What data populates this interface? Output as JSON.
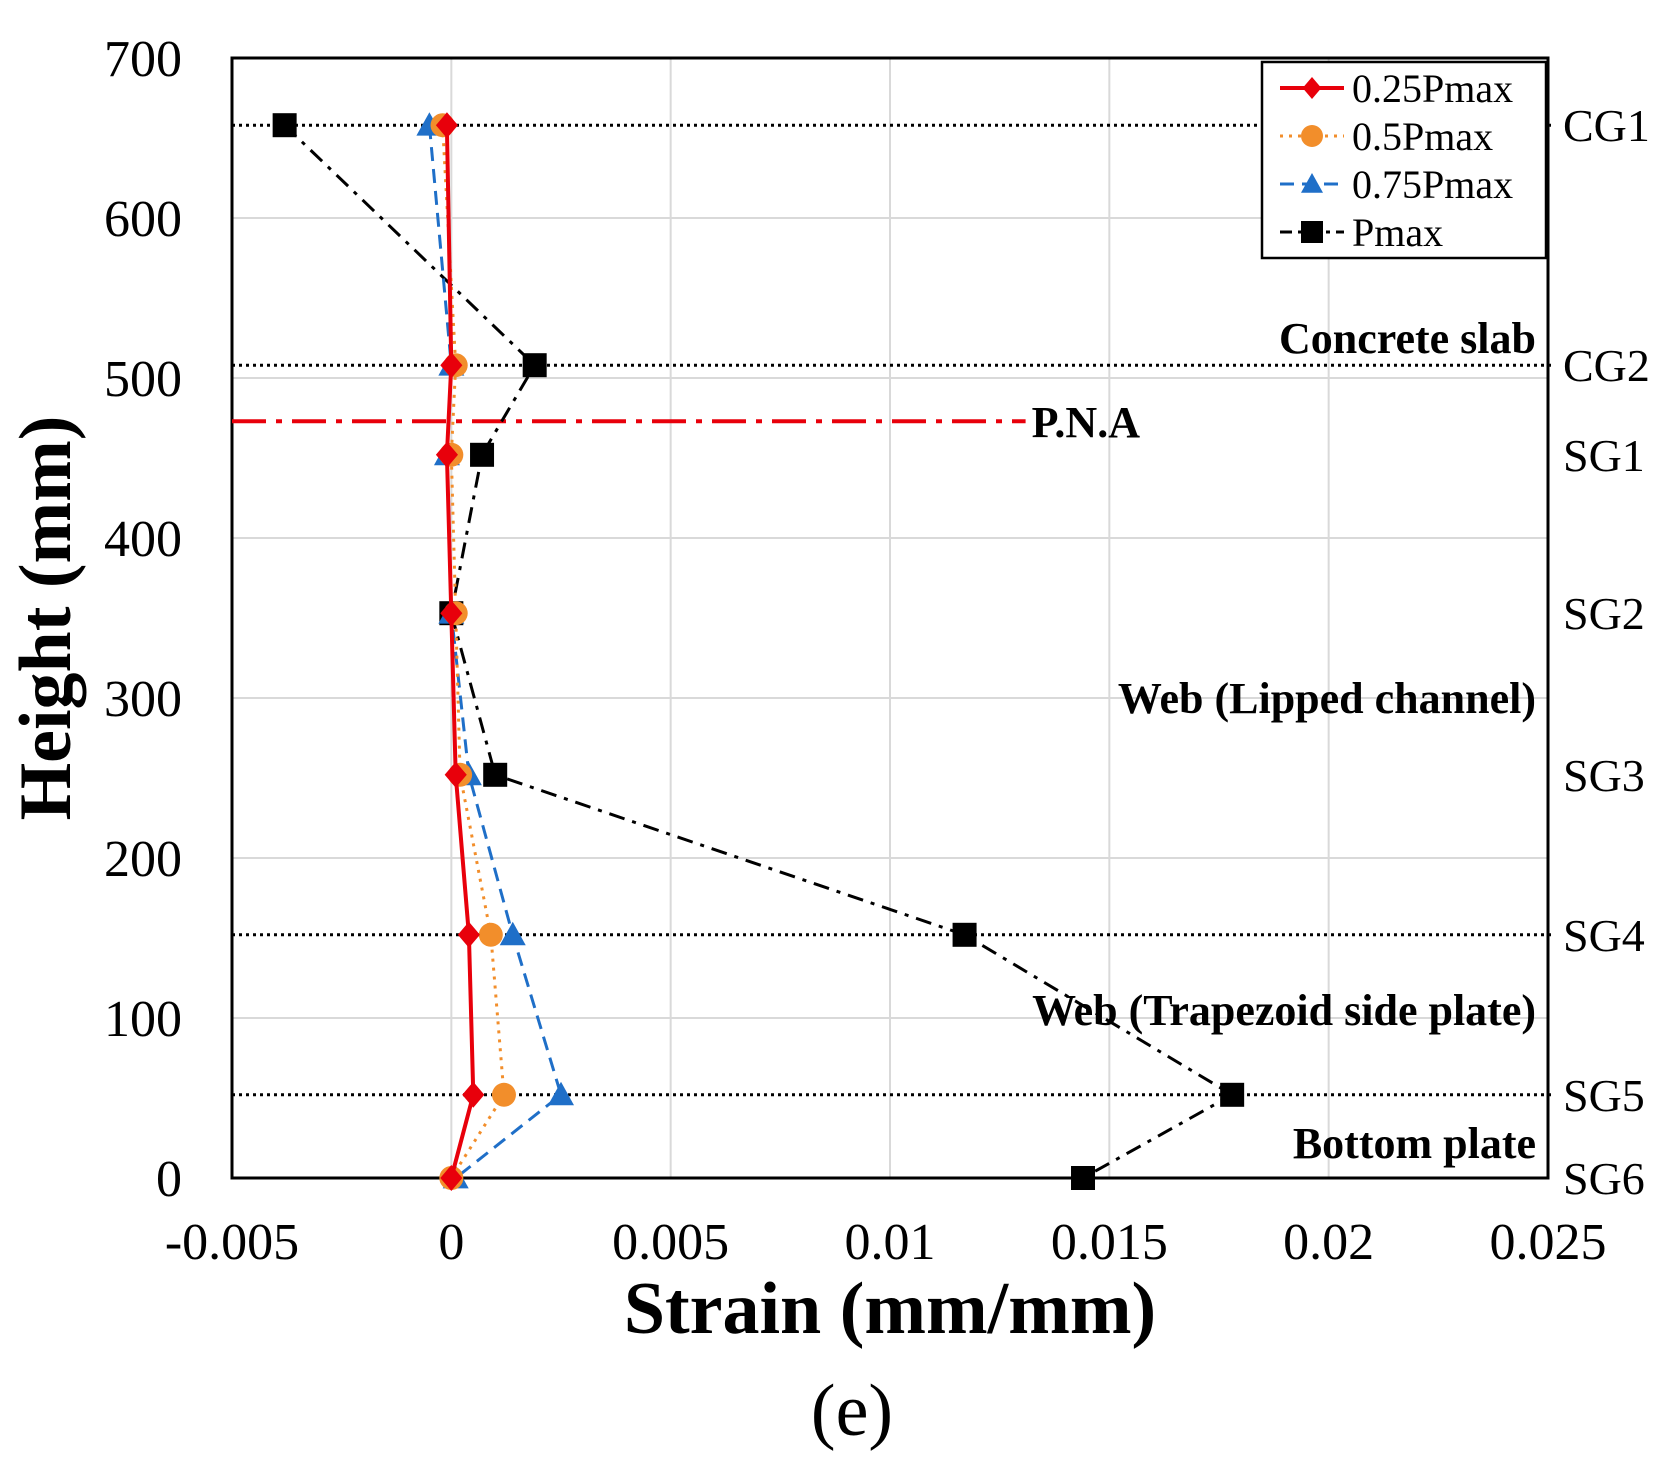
{
  "chart_data": {
    "type": "line",
    "orientation": "strain-vs-height profile",
    "xlabel": "Strain (mm/mm)",
    "ylabel": "Height (mm)",
    "xlim": [
      -0.005,
      0.025
    ],
    "ylim": [
      0,
      700
    ],
    "x_ticks": [
      -0.005,
      0,
      0.005,
      0.01,
      0.015,
      0.02,
      0.025
    ],
    "x_tick_labels": [
      "-0.005",
      "0",
      "0.005",
      "0.01",
      "0.015",
      "0.02",
      "0.025"
    ],
    "y_ticks": [
      0,
      100,
      200,
      300,
      400,
      500,
      600,
      700
    ],
    "y_tick_labels": [
      "0",
      "100",
      "200",
      "300",
      "400",
      "500",
      "600",
      "700"
    ],
    "grid": true,
    "legend_position": "top-right",
    "series": [
      {
        "name": "0.25Pmax",
        "color": "#e8000b",
        "line_style": "solid",
        "marker": "diamond",
        "points": [
          {
            "strain": -0.0001,
            "height": 658
          },
          {
            "strain": 0.0,
            "height": 508
          },
          {
            "strain": -0.0001,
            "height": 452
          },
          {
            "strain": 0.0,
            "height": 353
          },
          {
            "strain": 0.0001,
            "height": 252
          },
          {
            "strain": 0.0004,
            "height": 152
          },
          {
            "strain": 0.0005,
            "height": 52
          },
          {
            "strain": 0.0,
            "height": 0
          }
        ]
      },
      {
        "name": "0.5Pmax",
        "color": "#f28e2b",
        "line_style": "dotted",
        "marker": "circle",
        "points": [
          {
            "strain": -0.0002,
            "height": 658
          },
          {
            "strain": 0.0001,
            "height": 508
          },
          {
            "strain": 0.0,
            "height": 452
          },
          {
            "strain": 0.0001,
            "height": 353
          },
          {
            "strain": 0.0002,
            "height": 252
          },
          {
            "strain": 0.0009,
            "height": 152
          },
          {
            "strain": 0.0012,
            "height": 52
          },
          {
            "strain": 0.0,
            "height": 0
          }
        ]
      },
      {
        "name": "0.75Pmax",
        "color": "#1f6fc8",
        "line_style": "dashed",
        "marker": "triangle",
        "points": [
          {
            "strain": -0.0005,
            "height": 658
          },
          {
            "strain": 0.0,
            "height": 508
          },
          {
            "strain": -0.0001,
            "height": 452
          },
          {
            "strain": 0.0,
            "height": 353
          },
          {
            "strain": 0.0004,
            "height": 252
          },
          {
            "strain": 0.0014,
            "height": 152
          },
          {
            "strain": 0.0025,
            "height": 52
          },
          {
            "strain": 0.0001,
            "height": 0
          }
        ]
      },
      {
        "name": "Pmax",
        "color": "#000000",
        "line_style": "dash-dot",
        "marker": "square",
        "points": [
          {
            "strain": -0.0038,
            "height": 658
          },
          {
            "strain": 0.0019,
            "height": 508
          },
          {
            "strain": 0.0007,
            "height": 452
          },
          {
            "strain": 0.0,
            "height": 353
          },
          {
            "strain": 0.001,
            "height": 252
          },
          {
            "strain": 0.0117,
            "height": 152
          },
          {
            "strain": 0.0178,
            "height": 52
          },
          {
            "strain": 0.0144,
            "height": 0
          }
        ]
      }
    ],
    "gauge_lines": [
      {
        "label": "CG1",
        "height": 658,
        "dotted_line": true
      },
      {
        "label": "CG2",
        "height": 508,
        "dotted_line": true
      },
      {
        "label": "SG1",
        "height": 452,
        "dotted_line": false
      },
      {
        "label": "SG2",
        "height": 353,
        "dotted_line": false
      },
      {
        "label": "SG3",
        "height": 252,
        "dotted_line": false
      },
      {
        "label": "SG4",
        "height": 152,
        "dotted_line": true
      },
      {
        "label": "SG5",
        "height": 52,
        "dotted_line": true
      },
      {
        "label": "SG6",
        "height": 0,
        "dotted_line": false
      }
    ],
    "pna_line": {
      "label": "P.N.A",
      "height": 473,
      "strain_end": 0.013,
      "color": "#e8000b"
    },
    "region_labels": [
      {
        "text": "Concrete slab",
        "height": 525
      },
      {
        "text": "Web (Lipped channel)",
        "height": 300
      },
      {
        "text": "Web (Trapezoid side plate)",
        "height": 105
      },
      {
        "text": "Bottom plate",
        "height": 22
      }
    ],
    "caption": "(e)"
  }
}
